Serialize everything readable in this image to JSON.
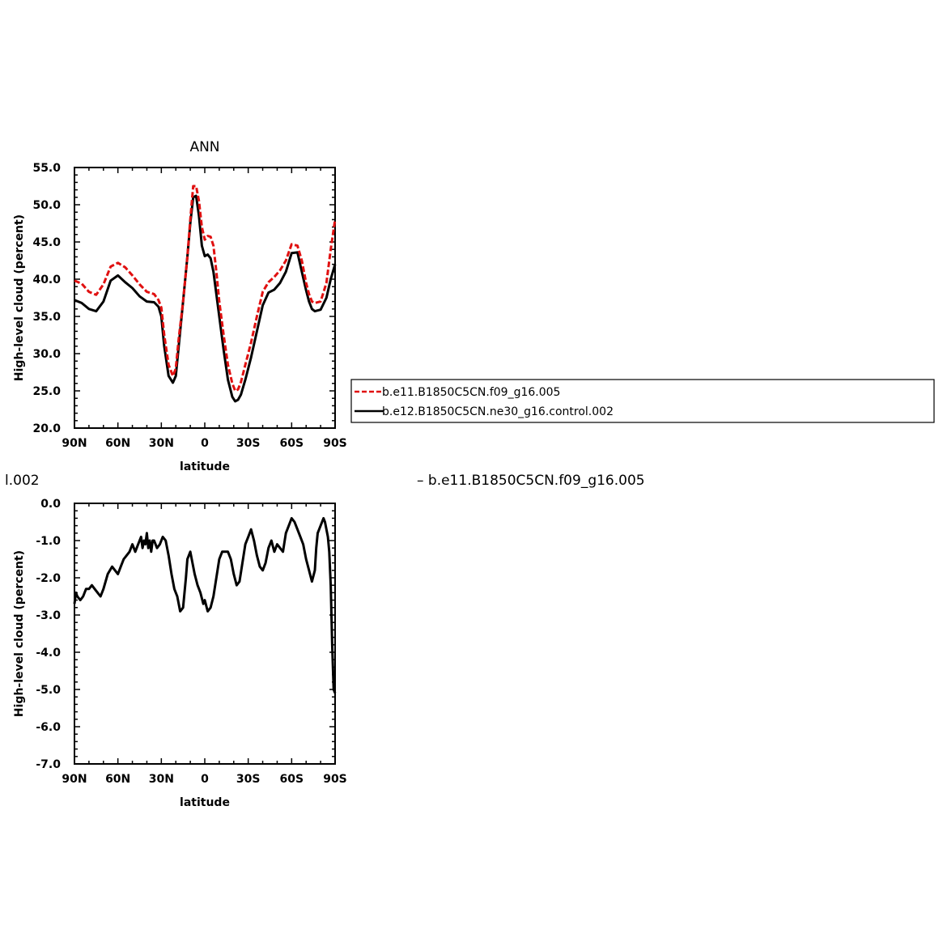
{
  "top_title": "ANN",
  "cut_left_text": "l.002",
  "cut_right_text": "–  b.e11.B1850C5CN.f09_g16.005",
  "colors": {
    "series1": "#e01010",
    "series2": "#000000"
  },
  "chart_data": [
    {
      "type": "line",
      "title": "ANN",
      "xlabel": "latitude",
      "ylabel": "High-level cloud (percent)",
      "xlim": [
        90,
        -90
      ],
      "ylim": [
        20,
        55
      ],
      "x_ticks": [
        90,
        60,
        30,
        0,
        -30,
        -60,
        -90
      ],
      "x_tick_labels": [
        "90N",
        "60N",
        "30N",
        "0",
        "30S",
        "60S",
        "90S"
      ],
      "y_ticks": [
        20,
        25,
        30,
        35,
        40,
        45,
        50,
        55
      ],
      "y_tick_labels": [
        "20.0",
        "25.0",
        "30.0",
        "35.0",
        "40.0",
        "45.0",
        "50.0",
        "55.0"
      ],
      "legend_position": "right",
      "grid": false,
      "series": [
        {
          "name": "b.e11.B1850C5CN.f09_g16.005",
          "color": "#e01010",
          "style": "dashed",
          "x": [
            90,
            85,
            80,
            75,
            70,
            65,
            60,
            55,
            50,
            45,
            40,
            35,
            32,
            30,
            28,
            25,
            22,
            20,
            18,
            15,
            12,
            10,
            8,
            6,
            4,
            2,
            0,
            -2,
            -4,
            -6,
            -8,
            -10,
            -13,
            -16,
            -19,
            -21,
            -23,
            -25,
            -28,
            -32,
            -36,
            -40,
            -44,
            -48,
            -52,
            -56,
            -60,
            -64,
            -67,
            -70,
            -72,
            -74,
            -76,
            -80,
            -84,
            -87,
            -90
          ],
          "y": [
            39.8,
            39.4,
            38.3,
            37.9,
            39.3,
            41.7,
            42.2,
            41.6,
            40.5,
            39.3,
            38.3,
            38.0,
            37.2,
            36.2,
            32.5,
            28.5,
            27.0,
            28.0,
            32.0,
            37.0,
            43.0,
            48.0,
            52.5,
            52.5,
            50.5,
            47.0,
            45.3,
            45.8,
            45.7,
            44.5,
            41.0,
            37.0,
            32.5,
            28.5,
            26.0,
            25.0,
            25.2,
            26.2,
            28.5,
            31.5,
            35.0,
            38.3,
            39.6,
            40.3,
            41.2,
            42.5,
            44.7,
            44.5,
            42.5,
            39.5,
            38.0,
            37.0,
            36.8,
            37.0,
            39.5,
            44.0,
            48.0
          ]
        },
        {
          "name": "b.e12.B1850C5CN.ne30_g16.control.002",
          "color": "#000000",
          "style": "solid",
          "x": [
            90,
            85,
            80,
            75,
            70,
            65,
            60,
            55,
            50,
            45,
            40,
            35,
            32,
            30,
            28,
            25,
            22,
            20,
            18,
            15,
            12,
            10,
            8,
            6,
            4,
            2,
            0,
            -2,
            -4,
            -6,
            -8,
            -10,
            -13,
            -16,
            -19,
            -21,
            -23,
            -25,
            -28,
            -32,
            -36,
            -40,
            -44,
            -48,
            -52,
            -56,
            -60,
            -64,
            -67,
            -70,
            -72,
            -74,
            -76,
            -80,
            -84,
            -87,
            -90
          ],
          "y": [
            37.2,
            36.8,
            36.0,
            35.7,
            37.0,
            39.8,
            40.5,
            39.6,
            38.8,
            37.7,
            37.0,
            36.9,
            36.3,
            35.0,
            31.0,
            27.0,
            26.1,
            27.0,
            31.0,
            37.0,
            43.0,
            47.5,
            51.0,
            51.2,
            48.5,
            44.5,
            43.1,
            43.3,
            42.8,
            41.0,
            38.0,
            35.0,
            30.5,
            26.5,
            24.2,
            23.6,
            23.8,
            24.5,
            26.5,
            29.5,
            33.0,
            36.5,
            38.2,
            38.6,
            39.5,
            41.0,
            43.5,
            43.6,
            41.0,
            38.5,
            37.0,
            36.0,
            35.7,
            35.9,
            37.5,
            40.0,
            42.0
          ]
        }
      ]
    },
    {
      "type": "line",
      "title": "",
      "xlabel": "latitude",
      "ylabel": "High-level cloud (percent)",
      "xlim": [
        90,
        -90
      ],
      "ylim": [
        -7,
        0
      ],
      "x_ticks": [
        90,
        60,
        30,
        0,
        -30,
        -60,
        -90
      ],
      "x_tick_labels": [
        "90N",
        "60N",
        "30N",
        "0",
        "30S",
        "60S",
        "90S"
      ],
      "y_ticks": [
        0,
        -1,
        -2,
        -3,
        -4,
        -5,
        -6,
        -7
      ],
      "y_tick_labels": [
        "0.0",
        "-1.0",
        "-2.0",
        "-3.0",
        "-4.0",
        "-5.0",
        "-6.0",
        "-7.0"
      ],
      "grid": false,
      "series": [
        {
          "color": "#000000",
          "style": "solid",
          "x": [
            90,
            89,
            88,
            86,
            84,
            82,
            80,
            78,
            76,
            74,
            72,
            70,
            67,
            64,
            62,
            60,
            58,
            56,
            54,
            52,
            50,
            48,
            46,
            44,
            43,
            42,
            41,
            40,
            39,
            38,
            37,
            36,
            35,
            33,
            31,
            29,
            27,
            25,
            23,
            21,
            19,
            17,
            15,
            13,
            12,
            11,
            10,
            9,
            7,
            5,
            3,
            1,
            0,
            -2,
            -4,
            -6,
            -8,
            -10,
            -12,
            -14,
            -16,
            -18,
            -20,
            -22,
            -24,
            -26,
            -28,
            -30,
            -32,
            -34,
            -36,
            -38,
            -40,
            -42,
            -44,
            -46,
            -48,
            -50,
            -52,
            -54,
            -56,
            -58,
            -60,
            -62,
            -64,
            -66,
            -68,
            -70,
            -72,
            -74,
            -76,
            -77,
            -78,
            -79,
            -80,
            -81,
            -82,
            -83,
            -84,
            -85,
            -86,
            -87,
            -88,
            -89,
            -90
          ],
          "y": [
            -2.7,
            -2.4,
            -2.5,
            -2.6,
            -2.5,
            -2.3,
            -2.3,
            -2.2,
            -2.3,
            -2.4,
            -2.5,
            -2.3,
            -1.9,
            -1.7,
            -1.8,
            -1.9,
            -1.7,
            -1.5,
            -1.4,
            -1.3,
            -1.1,
            -1.3,
            -1.1,
            -0.9,
            -1.2,
            -1.0,
            -1.1,
            -0.8,
            -1.2,
            -1.0,
            -1.3,
            -1.0,
            -1.0,
            -1.2,
            -1.1,
            -0.9,
            -1.0,
            -1.4,
            -1.9,
            -2.3,
            -2.5,
            -2.9,
            -2.8,
            -2.0,
            -1.5,
            -1.4,
            -1.3,
            -1.5,
            -1.9,
            -2.2,
            -2.4,
            -2.7,
            -2.6,
            -2.9,
            -2.8,
            -2.5,
            -2.0,
            -1.5,
            -1.3,
            -1.3,
            -1.3,
            -1.5,
            -1.9,
            -2.2,
            -2.1,
            -1.6,
            -1.1,
            -0.9,
            -0.7,
            -1.0,
            -1.4,
            -1.7,
            -1.8,
            -1.6,
            -1.2,
            -1.0,
            -1.3,
            -1.1,
            -1.2,
            -1.3,
            -0.8,
            -0.6,
            -0.4,
            -0.5,
            -0.7,
            -0.9,
            -1.1,
            -1.5,
            -1.8,
            -2.1,
            -1.8,
            -1.2,
            -0.8,
            -0.7,
            -0.6,
            -0.5,
            -0.4,
            -0.5,
            -0.7,
            -0.9,
            -1.3,
            -2.2,
            -3.8,
            -5.0,
            -5.1
          ]
        }
      ]
    }
  ]
}
